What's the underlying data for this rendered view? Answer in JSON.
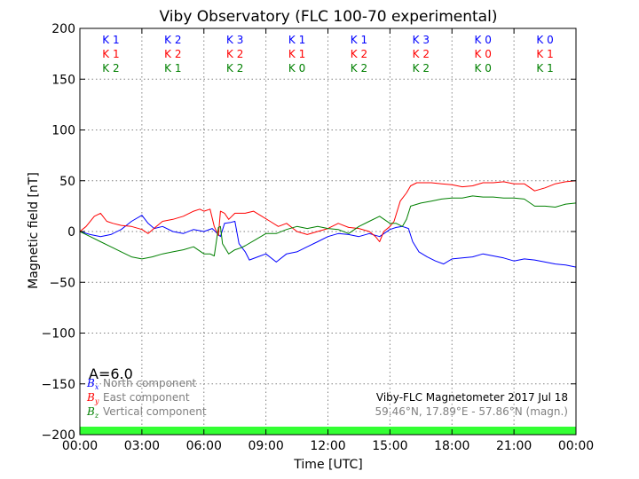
{
  "chart_data": {
    "type": "line",
    "title": "Viby Observatory (FLC 100-70 experimental)",
    "xlabel": "Time [UTC]",
    "ylabel": "Magnetic field [nT]",
    "xlim": [
      0,
      24
    ],
    "ylim": [
      -200,
      200
    ],
    "grid": true,
    "x_ticks": [
      {
        "value": 0,
        "label": "00:00"
      },
      {
        "value": 3,
        "label": "03:00"
      },
      {
        "value": 6,
        "label": "06:00"
      },
      {
        "value": 9,
        "label": "09:00"
      },
      {
        "value": 12,
        "label": "12:00"
      },
      {
        "value": 15,
        "label": "15:00"
      },
      {
        "value": 18,
        "label": "18:00"
      },
      {
        "value": 21,
        "label": "21:00"
      },
      {
        "value": 24,
        "label": "00:00"
      }
    ],
    "y_ticks": [
      {
        "value": 200,
        "label": "200"
      },
      {
        "value": 150,
        "label": "150"
      },
      {
        "value": 100,
        "label": "100"
      },
      {
        "value": 50,
        "label": "50"
      },
      {
        "value": 0,
        "label": "0"
      },
      {
        "value": -50,
        "label": "−50"
      },
      {
        "value": -100,
        "label": "−100"
      },
      {
        "value": -150,
        "label": "−150"
      },
      {
        "value": -200,
        "label": "−200"
      }
    ],
    "series": [
      {
        "name": "North component",
        "symbol": "B",
        "subscript": "x",
        "color": "#0000ff",
        "points": [
          [
            0,
            0
          ],
          [
            0.5,
            -3
          ],
          [
            1,
            -5
          ],
          [
            1.5,
            -3
          ],
          [
            2,
            2
          ],
          [
            2.5,
            10
          ],
          [
            3,
            16
          ],
          [
            3.3,
            8
          ],
          [
            3.6,
            3
          ],
          [
            4,
            5
          ],
          [
            4.5,
            0
          ],
          [
            5,
            -2
          ],
          [
            5.5,
            2
          ],
          [
            6,
            0
          ],
          [
            6.4,
            3
          ],
          [
            6.8,
            -5
          ],
          [
            7,
            8
          ],
          [
            7.3,
            9
          ],
          [
            7.5,
            10
          ],
          [
            7.7,
            -12
          ],
          [
            8,
            -20
          ],
          [
            8.2,
            -28
          ],
          [
            8.6,
            -25
          ],
          [
            9,
            -22
          ],
          [
            9.5,
            -30
          ],
          [
            10,
            -22
          ],
          [
            10.5,
            -20
          ],
          [
            11,
            -15
          ],
          [
            11.5,
            -10
          ],
          [
            12,
            -5
          ],
          [
            12.5,
            -2
          ],
          [
            13,
            -3
          ],
          [
            13.5,
            -5
          ],
          [
            14,
            -2
          ],
          [
            14.5,
            -5
          ],
          [
            15,
            2
          ],
          [
            15.3,
            4
          ],
          [
            15.6,
            5
          ],
          [
            15.9,
            3
          ],
          [
            16.1,
            -10
          ],
          [
            16.4,
            -20
          ],
          [
            16.8,
            -25
          ],
          [
            17.2,
            -29
          ],
          [
            17.6,
            -32
          ],
          [
            18,
            -27
          ],
          [
            18.5,
            -26
          ],
          [
            19,
            -25
          ],
          [
            19.5,
            -22
          ],
          [
            20,
            -24
          ],
          [
            20.5,
            -26
          ],
          [
            21,
            -29
          ],
          [
            21.5,
            -27
          ],
          [
            22,
            -28
          ],
          [
            22.5,
            -30
          ],
          [
            23,
            -32
          ],
          [
            23.5,
            -33
          ],
          [
            24,
            -35
          ]
        ]
      },
      {
        "name": "East component",
        "symbol": "B",
        "subscript": "y",
        "color": "#ff0000",
        "points": [
          [
            0,
            0
          ],
          [
            0.3,
            5
          ],
          [
            0.7,
            15
          ],
          [
            1,
            18
          ],
          [
            1.3,
            10
          ],
          [
            1.6,
            8
          ],
          [
            2,
            6
          ],
          [
            2.5,
            5
          ],
          [
            3,
            2
          ],
          [
            3.3,
            -2
          ],
          [
            3.7,
            5
          ],
          [
            4,
            10
          ],
          [
            4.5,
            12
          ],
          [
            5,
            15
          ],
          [
            5.5,
            20
          ],
          [
            5.8,
            22
          ],
          [
            6,
            20
          ],
          [
            6.3,
            22
          ],
          [
            6.5,
            5
          ],
          [
            6.7,
            -4
          ],
          [
            6.8,
            20
          ],
          [
            7,
            18
          ],
          [
            7.2,
            12
          ],
          [
            7.5,
            18
          ],
          [
            8,
            18
          ],
          [
            8.4,
            20
          ],
          [
            8.8,
            15
          ],
          [
            9.2,
            10
          ],
          [
            9.6,
            5
          ],
          [
            10,
            8
          ],
          [
            10.5,
            0
          ],
          [
            11,
            -3
          ],
          [
            11.5,
            0
          ],
          [
            12,
            3
          ],
          [
            12.5,
            8
          ],
          [
            13,
            4
          ],
          [
            13.5,
            3
          ],
          [
            14,
            0
          ],
          [
            14.3,
            -5
          ],
          [
            14.5,
            -10
          ],
          [
            14.7,
            0
          ],
          [
            15,
            5
          ],
          [
            15.2,
            10
          ],
          [
            15.5,
            30
          ],
          [
            15.8,
            38
          ],
          [
            16,
            45
          ],
          [
            16.3,
            48
          ],
          [
            16.7,
            48
          ],
          [
            17,
            48
          ],
          [
            17.5,
            47
          ],
          [
            18,
            46
          ],
          [
            18.5,
            44
          ],
          [
            19,
            45
          ],
          [
            19.5,
            48
          ],
          [
            20,
            48
          ],
          [
            20.5,
            49
          ],
          [
            21,
            47
          ],
          [
            21.5,
            47
          ],
          [
            22,
            40
          ],
          [
            22.5,
            43
          ],
          [
            23,
            47
          ],
          [
            23.5,
            49
          ],
          [
            24,
            50
          ]
        ]
      },
      {
        "name": "Vertical component",
        "symbol": "B",
        "subscript": "z",
        "color": "#008000",
        "points": [
          [
            0,
            0
          ],
          [
            0.5,
            -5
          ],
          [
            1,
            -10
          ],
          [
            1.5,
            -15
          ],
          [
            2,
            -20
          ],
          [
            2.5,
            -25
          ],
          [
            3,
            -27
          ],
          [
            3.5,
            -25
          ],
          [
            4,
            -22
          ],
          [
            4.5,
            -20
          ],
          [
            5,
            -18
          ],
          [
            5.5,
            -15
          ],
          [
            6,
            -22
          ],
          [
            6.3,
            -22
          ],
          [
            6.5,
            -24
          ],
          [
            6.7,
            4
          ],
          [
            6.8,
            5
          ],
          [
            6.9,
            -12
          ],
          [
            7.2,
            -22
          ],
          [
            7.5,
            -18
          ],
          [
            7.8,
            -16
          ],
          [
            8,
            -14
          ],
          [
            8.5,
            -8
          ],
          [
            9,
            -2
          ],
          [
            9.5,
            -2
          ],
          [
            10,
            2
          ],
          [
            10.5,
            5
          ],
          [
            11,
            3
          ],
          [
            11.5,
            5
          ],
          [
            12,
            3
          ],
          [
            12.5,
            2
          ],
          [
            13,
            -2
          ],
          [
            13.5,
            5
          ],
          [
            14,
            10
          ],
          [
            14.5,
            15
          ],
          [
            15,
            8
          ],
          [
            15.3,
            8
          ],
          [
            15.6,
            5
          ],
          [
            15.8,
            12
          ],
          [
            16,
            25
          ],
          [
            16.5,
            28
          ],
          [
            17,
            30
          ],
          [
            17.5,
            32
          ],
          [
            18,
            33
          ],
          [
            18.5,
            33
          ],
          [
            19,
            35
          ],
          [
            19.5,
            34
          ],
          [
            20,
            34
          ],
          [
            20.5,
            33
          ],
          [
            21,
            33
          ],
          [
            21.5,
            32
          ],
          [
            22,
            25
          ],
          [
            22.5,
            25
          ],
          [
            23,
            24
          ],
          [
            23.5,
            27
          ],
          [
            24,
            28
          ]
        ]
      }
    ],
    "k_indices": {
      "x": [
        1.5,
        4.5,
        7.5,
        10.5,
        13.5,
        16.5,
        19.5,
        22.5
      ],
      "rows": [
        {
          "color": "#0000ff",
          "labels": [
            "K 1",
            "K 2",
            "K 3",
            "K 1",
            "K 1",
            "K 3",
            "K 0",
            "K 0"
          ]
        },
        {
          "color": "#ff0000",
          "labels": [
            "K 1",
            "K 2",
            "K 2",
            "K 1",
            "K 2",
            "K 2",
            "K 0",
            "K 1"
          ]
        },
        {
          "color": "#008000",
          "labels": [
            "K 2",
            "K 1",
            "K 2",
            "K 0",
            "K 2",
            "K 2",
            "K 0",
            "K 1"
          ]
        }
      ]
    },
    "a_index": "A=6.0",
    "info": {
      "line1": "Viby-FLC Magnetometer 2017 Jul 18",
      "line2": "59.46°N, 17.89°E - 57.86°N (magn.)"
    },
    "status_bar_color": "#33ff33"
  }
}
